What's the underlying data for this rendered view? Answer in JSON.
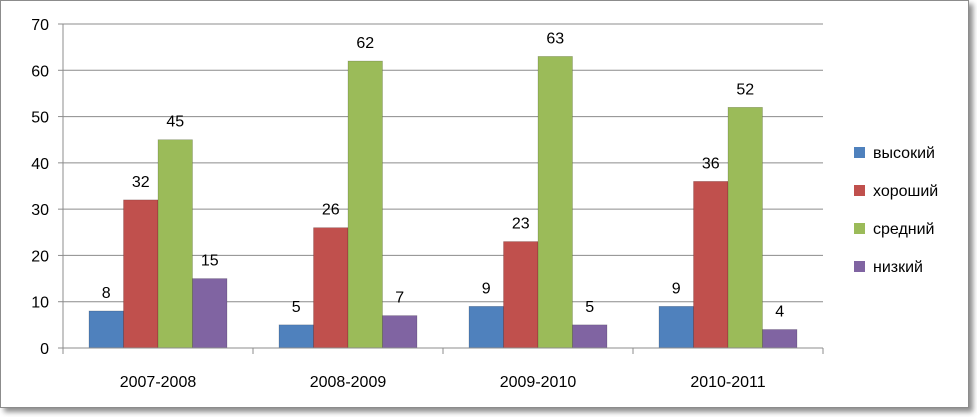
{
  "chart_data": {
    "type": "bar",
    "categories": [
      "2007-2008",
      "2008-2009",
      "2009-2010",
      "2010-2011"
    ],
    "series": [
      {
        "name": "высокий",
        "color": "#4f81bd",
        "values": [
          8,
          5,
          9,
          9
        ]
      },
      {
        "name": "хороший",
        "color": "#c0504d",
        "values": [
          32,
          26,
          23,
          36
        ]
      },
      {
        "name": "средний",
        "color": "#9bbb59",
        "values": [
          45,
          62,
          63,
          52
        ]
      },
      {
        "name": "низкий",
        "color": "#8064a2",
        "values": [
          15,
          7,
          5,
          4
        ]
      }
    ],
    "ylim": [
      0,
      70
    ],
    "yticks": [
      0,
      10,
      20,
      30,
      40,
      50,
      60,
      70
    ],
    "grid": true,
    "legend": "right",
    "title": "",
    "xlabel": "",
    "ylabel": ""
  }
}
